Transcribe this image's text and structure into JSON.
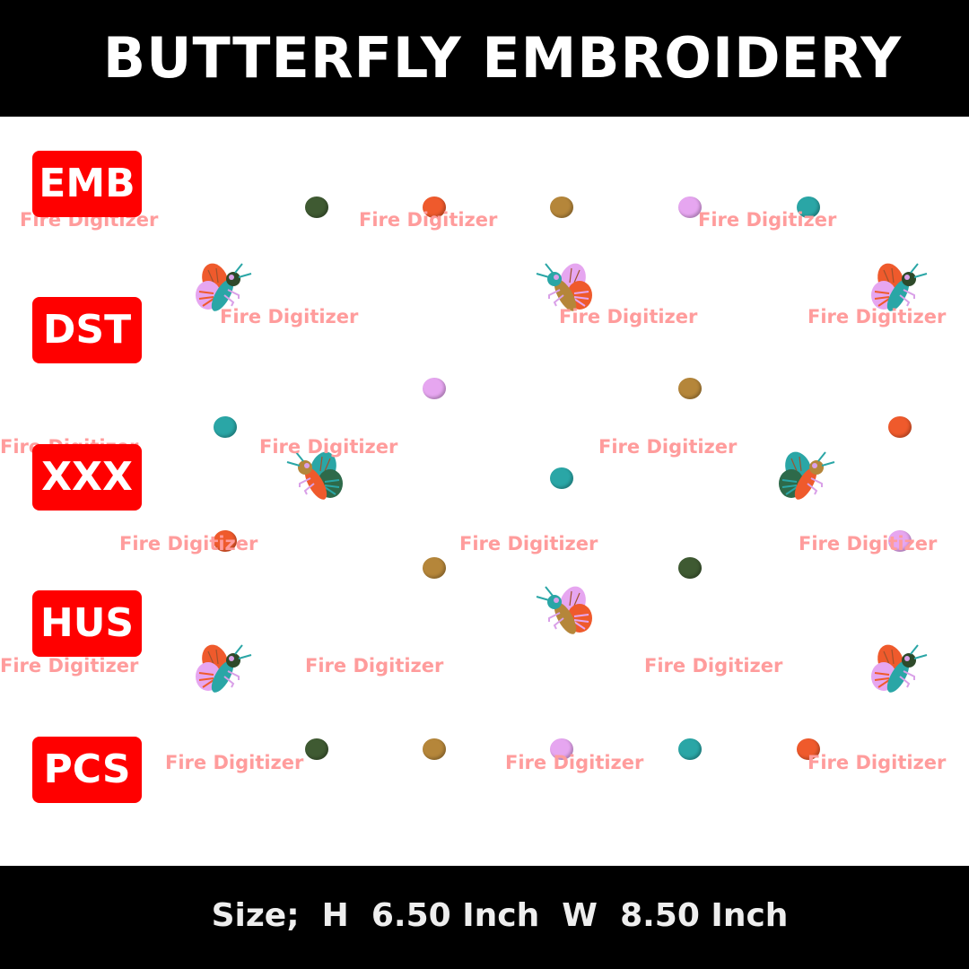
{
  "header": {
    "title": "BUTTERFLY EMBROIDERY"
  },
  "formats": [
    "EMB",
    "DST",
    "XXX",
    "HUS",
    "PCS"
  ],
  "watermark": "Fire Digitizer",
  "footer": {
    "size_text": "Size;  H  6.50 Inch  W  8.50 Inch"
  },
  "colors": {
    "header_bg": "#000000",
    "format_badge": "#ff0000",
    "watermark": "#ff9c9c",
    "thread_green": "#3f5a32",
    "thread_orange": "#ef5a2c",
    "thread_brown": "#b5863a",
    "thread_pink": "#e6a6f0",
    "thread_teal": "#2aa6a6"
  }
}
